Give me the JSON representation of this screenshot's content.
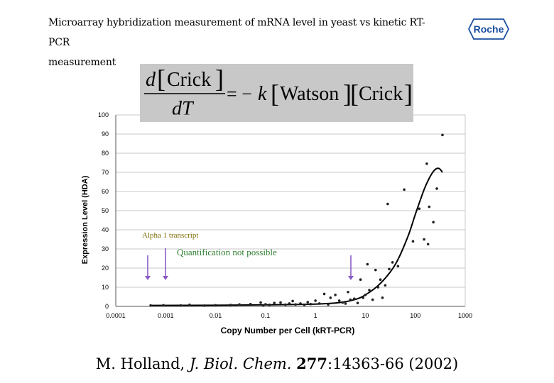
{
  "title": {
    "line1": "Microarray hybridization measurement of mRNA level in yeast vs kinetic RT-PCR",
    "line2": "measurement"
  },
  "logo": {
    "text": "Roche",
    "color": "#1a4fa0"
  },
  "equation": {
    "d": "d",
    "crick": "Crick",
    "dT": "dT",
    "eq": "= −",
    "k": "k",
    "watson": "Watson"
  },
  "annotations": {
    "alpha": "Alpha 1 transcript",
    "quant": "Quantification not possible",
    "alpha_color": "#7a6a00",
    "quant_color": "#2e7d32",
    "arrow_color": "#8a5cc7"
  },
  "citation": {
    "authors": "M. Holland, ",
    "journal": "J. Biol. Chem.",
    "volume": "277",
    "pages": ":14363-66 (2002)"
  },
  "chart_data": {
    "type": "scatter",
    "xlabel": "Copy Number per Cell (kRT-PCR)",
    "ylabel": "Expression Level (HDA)",
    "xscale": "log",
    "xlim": [
      0.0001,
      1000
    ],
    "ylim": [
      0,
      100
    ],
    "xticks": [
      0.0001,
      0.001,
      0.01,
      0.1,
      1,
      10,
      100,
      1000
    ],
    "xtick_labels": [
      "0.0001",
      "0.001",
      "0.01",
      "0.1",
      "1",
      "10",
      "100",
      "1000"
    ],
    "yticks": [
      0,
      10,
      20,
      30,
      40,
      50,
      60,
      70,
      80,
      90,
      100
    ],
    "ytick_labels": [
      "0",
      "10",
      "20",
      "30",
      "40",
      "50",
      "60",
      "70",
      "80",
      "90",
      "100"
    ],
    "grid": "horizontal",
    "points": [
      [
        0.0005,
        0.5
      ],
      [
        0.0009,
        0.6
      ],
      [
        0.002,
        0.5
      ],
      [
        0.003,
        0.8
      ],
      [
        0.006,
        0.4
      ],
      [
        0.01,
        0.6
      ],
      [
        0.02,
        0.7
      ],
      [
        0.03,
        1.0
      ],
      [
        0.05,
        1.2
      ],
      [
        0.08,
        2.0
      ],
      [
        0.09,
        0.5
      ],
      [
        0.1,
        1.1
      ],
      [
        0.12,
        0.8
      ],
      [
        0.15,
        1.8
      ],
      [
        0.2,
        2.0
      ],
      [
        0.25,
        0.9
      ],
      [
        0.3,
        1.5
      ],
      [
        0.35,
        2.8
      ],
      [
        0.4,
        1.0
      ],
      [
        0.5,
        1.5
      ],
      [
        0.6,
        0.8
      ],
      [
        0.7,
        2.2
      ],
      [
        0.8,
        1.2
      ],
      [
        1.0,
        3.0
      ],
      [
        1.2,
        1.5
      ],
      [
        1.5,
        6.5
      ],
      [
        1.8,
        1.0
      ],
      [
        2.0,
        4.5
      ],
      [
        2.5,
        6.0
      ],
      [
        3.0,
        3.0
      ],
      [
        3.5,
        2.0
      ],
      [
        4.0,
        1.5
      ],
      [
        4.5,
        7.5
      ],
      [
        5.0,
        3.5
      ],
      [
        6.0,
        4.0
      ],
      [
        7.0,
        1.8
      ],
      [
        8.0,
        14.0
      ],
      [
        9.0,
        4.5
      ],
      [
        10.0,
        6.0
      ],
      [
        11.0,
        22.0
      ],
      [
        12.0,
        8.5
      ],
      [
        14.0,
        3.5
      ],
      [
        16.0,
        19.0
      ],
      [
        18.0,
        10.0
      ],
      [
        20.0,
        14.0
      ],
      [
        22.0,
        4.5
      ],
      [
        25.0,
        11.0
      ],
      [
        28.0,
        53.5
      ],
      [
        30.0,
        19.5
      ],
      [
        35.0,
        23.0
      ],
      [
        45.0,
        21.0
      ],
      [
        60.0,
        61.0
      ],
      [
        90.0,
        34.0
      ],
      [
        120.0,
        51.0
      ],
      [
        150.0,
        35.0
      ],
      [
        170.0,
        74.5
      ],
      [
        180.0,
        32.5
      ],
      [
        190.0,
        52.0
      ],
      [
        230.0,
        44.0
      ],
      [
        270.0,
        61.5
      ],
      [
        350.0,
        89.5
      ]
    ],
    "curve": [
      [
        0.0005,
        0.5
      ],
      [
        0.01,
        0.6
      ],
      [
        0.1,
        0.8
      ],
      [
        1.0,
        1.2
      ],
      [
        3.0,
        2.0
      ],
      [
        6.0,
        3.5
      ],
      [
        10.0,
        6.0
      ],
      [
        20.0,
        12.0
      ],
      [
        40.0,
        22.0
      ],
      [
        70.0,
        36.0
      ],
      [
        100.0,
        48.0
      ],
      [
        150.0,
        61.0
      ],
      [
        200.0,
        68.0
      ],
      [
        250.0,
        71.5
      ],
      [
        300.0,
        72.0
      ],
      [
        350.0,
        70.0
      ]
    ]
  }
}
